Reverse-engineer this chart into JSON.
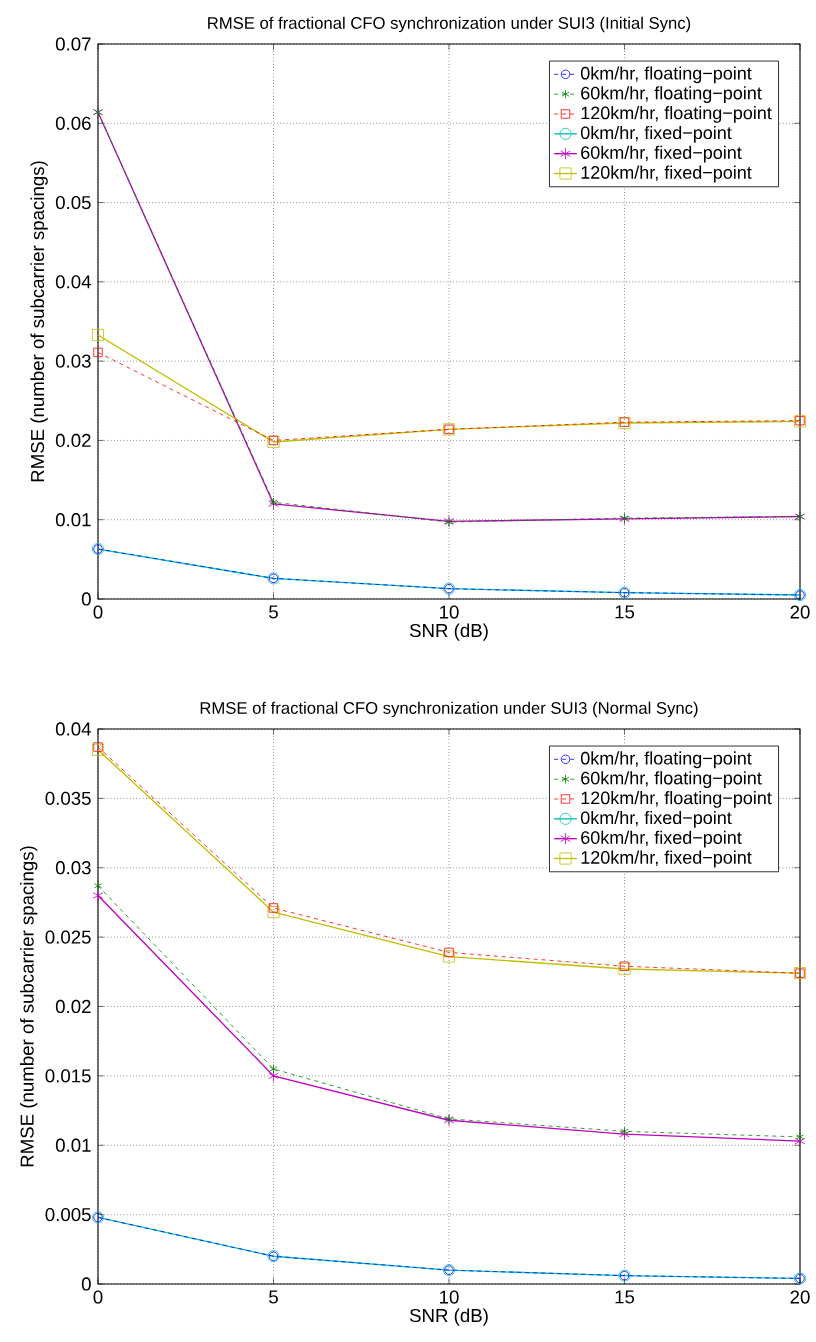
{
  "chart_data": [
    {
      "type": "line",
      "title": "RMSE of fractional CFO synchronization under SUI3 (Initial Sync)",
      "xlabel": "SNR (dB)",
      "ylabel": "RMSE (number of subcarrier spacings)",
      "x": [
        0,
        5,
        10,
        15,
        20
      ],
      "xlim": [
        0,
        20
      ],
      "ylim": [
        0,
        0.07
      ],
      "xticks": [
        0,
        5,
        10,
        15,
        20
      ],
      "yticks": [
        0,
        0.01,
        0.02,
        0.03,
        0.04,
        0.05,
        0.06,
        0.07
      ],
      "grid": true,
      "legend": "top right",
      "series": [
        {
          "name": "0km/hr, floating−point",
          "color": "#0000ff",
          "marker": "circle",
          "line_style": "dashed",
          "values": [
            0.0063,
            0.0026,
            0.0013,
            0.0008,
            0.0005
          ]
        },
        {
          "name": "60km/hr, floating−point",
          "color": "#008000",
          "marker": "cross",
          "line_style": "dashed",
          "values": [
            0.0614,
            0.0122,
            0.0097,
            0.0102,
            0.0104
          ]
        },
        {
          "name": "120km/hr, floating−point",
          "color": "#ff0000",
          "marker": "square",
          "line_style": "dashed",
          "values": [
            0.0311,
            0.02,
            0.0214,
            0.0223,
            0.0225
          ]
        },
        {
          "name": "0km/hr, fixed−point",
          "color": "#00bfbf",
          "marker": "circle",
          "line_style": "solid",
          "values": [
            0.0063,
            0.0026,
            0.0013,
            0.0008,
            0.0005
          ]
        },
        {
          "name": "60km/hr, fixed−point",
          "color": "#bf00bf",
          "marker": "cross",
          "line_style": "solid",
          "values": [
            0.0614,
            0.012,
            0.0098,
            0.0101,
            0.0104
          ]
        },
        {
          "name": "120km/hr, fixed−point",
          "color": "#bfbf00",
          "marker": "square",
          "line_style": "solid",
          "values": [
            0.0333,
            0.0198,
            0.0214,
            0.0222,
            0.0224
          ]
        }
      ]
    },
    {
      "type": "line",
      "title": "RMSE of fractional CFO synchronization under SUI3 (Normal Sync)",
      "xlabel": "SNR (dB)",
      "ylabel": "RMSE (number of subcarrier spacings)",
      "x": [
        0,
        5,
        10,
        15,
        20
      ],
      "xlim": [
        0,
        20
      ],
      "ylim": [
        0,
        0.04
      ],
      "xticks": [
        0,
        5,
        10,
        15,
        20
      ],
      "yticks": [
        0,
        0.005,
        0.01,
        0.015,
        0.02,
        0.025,
        0.03,
        0.035,
        0.04
      ],
      "grid": true,
      "legend": "top right",
      "series": [
        {
          "name": "0km/hr, floating−point",
          "color": "#0000ff",
          "marker": "circle",
          "line_style": "dashed",
          "values": [
            0.0048,
            0.002,
            0.001,
            0.0006,
            0.0004
          ]
        },
        {
          "name": "60km/hr, floating−point",
          "color": "#008000",
          "marker": "cross",
          "line_style": "dashed",
          "values": [
            0.0287,
            0.0155,
            0.0119,
            0.011,
            0.0106
          ]
        },
        {
          "name": "120km/hr, floating−point",
          "color": "#ff0000",
          "marker": "square",
          "line_style": "dashed",
          "values": [
            0.0387,
            0.0271,
            0.0239,
            0.0229,
            0.0224
          ]
        },
        {
          "name": "0km/hr, fixed−point",
          "color": "#00bfbf",
          "marker": "circle",
          "line_style": "solid",
          "values": [
            0.0048,
            0.002,
            0.001,
            0.0006,
            0.0004
          ]
        },
        {
          "name": "60km/hr, fixed−point",
          "color": "#bf00bf",
          "marker": "cross",
          "line_style": "solid",
          "values": [
            0.028,
            0.015,
            0.0118,
            0.0108,
            0.0103
          ]
        },
        {
          "name": "120km/hr, fixed−point",
          "color": "#bfbf00",
          "marker": "square",
          "line_style": "solid",
          "values": [
            0.0385,
            0.0268,
            0.0236,
            0.0227,
            0.0224
          ]
        }
      ]
    }
  ]
}
